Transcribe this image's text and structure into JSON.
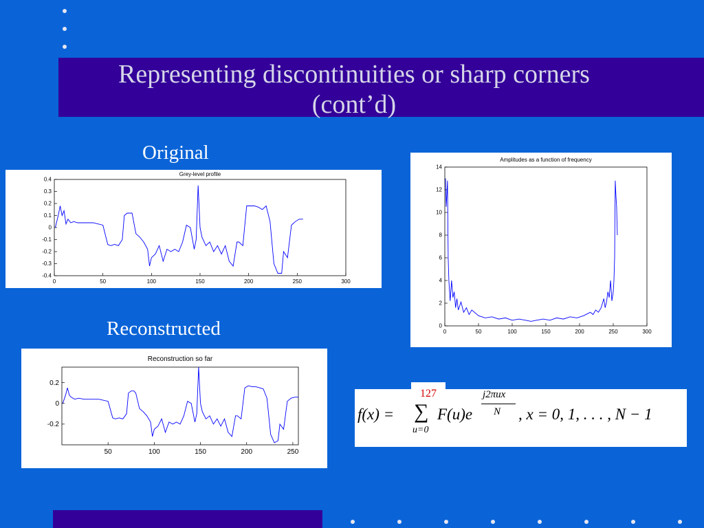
{
  "slide": {
    "title_line1": "Representing discontinuities or sharp corners",
    "title_line2": "(cont’d)",
    "label_original": "Original",
    "label_reconstructed": "Reconstructed",
    "slide_number": "127",
    "colors": {
      "background": "#0a64d8",
      "band": "#330099",
      "title_text": "#d6d6e8",
      "plot_line": "#0000ff",
      "slide_number": "#d40000"
    }
  },
  "equation": {
    "lhs": "f(x) = ",
    "sum_symbol": "∑",
    "sum_lower": "u=0",
    "term": "F(u)e",
    "exp_numerator": "j2πux",
    "exp_denominator": "N",
    "rhs": ", x = 0, 1, . . . , N − 1"
  },
  "chart_data": [
    {
      "type": "line",
      "title": "Grey-level profile",
      "xlim": [
        0,
        300
      ],
      "ylim": [
        -0.4,
        0.4
      ],
      "xticks": [
        "0",
        "50",
        "100",
        "150",
        "200",
        "250",
        "300"
      ],
      "yticks": [
        "0.4",
        "0.3",
        "0.2",
        "0.1",
        "0",
        "-0.1",
        "-0.2",
        "-0.3",
        "-0.4"
      ],
      "series": [
        {
          "x": [
            1,
            4,
            6,
            8,
            10,
            12,
            14,
            17,
            20,
            24,
            30,
            40,
            50,
            55,
            58,
            62,
            66,
            70,
            72,
            75,
            78,
            80,
            84,
            88,
            92,
            96,
            98,
            100,
            104,
            108,
            112,
            116,
            120,
            124,
            128,
            132,
            136,
            140,
            144,
            146,
            148,
            150,
            152,
            156,
            160,
            164,
            168,
            172,
            176,
            180,
            184,
            188,
            190,
            194,
            198,
            202,
            206,
            210,
            214,
            218,
            222,
            226,
            230,
            234,
            236,
            240,
            244,
            248,
            252,
            256
          ],
          "y": [
            0.0,
            0.1,
            0.18,
            0.1,
            0.14,
            0.03,
            0.07,
            0.04,
            0.05,
            0.04,
            0.04,
            0.04,
            0.02,
            -0.14,
            -0.15,
            -0.14,
            -0.15,
            -0.1,
            0.1,
            0.12,
            0.12,
            0.12,
            -0.05,
            -0.08,
            -0.12,
            -0.18,
            -0.32,
            -0.25,
            -0.22,
            -0.15,
            -0.28,
            -0.18,
            -0.2,
            -0.18,
            -0.2,
            -0.12,
            0.02,
            0.0,
            -0.18,
            -0.1,
            0.35,
            0.0,
            -0.08,
            -0.15,
            -0.12,
            -0.2,
            -0.15,
            -0.22,
            -0.15,
            -0.28,
            -0.32,
            -0.12,
            -0.12,
            -0.15,
            0.18,
            0.18,
            0.18,
            0.17,
            0.15,
            0.18,
            0.05,
            -0.3,
            -0.38,
            -0.38,
            -0.2,
            -0.25,
            0.02,
            0.05,
            0.07,
            0.07
          ]
        }
      ]
    },
    {
      "type": "line",
      "title": "Amplitudes as a function of frequency",
      "xlim": [
        0,
        300
      ],
      "ylim": [
        0,
        14
      ],
      "xticks": [
        "0",
        "50",
        "100",
        "150",
        "200",
        "250",
        "300"
      ],
      "yticks": [
        "14",
        "12",
        "10",
        "8",
        "6",
        "4",
        "2",
        "0"
      ],
      "series": [
        {
          "x": [
            1,
            2,
            3,
            4,
            5,
            6,
            7,
            8,
            10,
            12,
            14,
            16,
            18,
            20,
            24,
            28,
            32,
            36,
            40,
            50,
            60,
            70,
            80,
            90,
            100,
            110,
            120,
            128,
            136,
            146,
            156,
            166,
            176,
            186,
            196,
            206,
            216,
            220,
            224,
            228,
            232,
            236,
            238,
            240,
            242,
            244,
            246,
            248,
            250,
            251,
            252,
            253,
            254,
            255,
            256
          ],
          "y": [
            13.0,
            10.5,
            11.5,
            12.8,
            6.0,
            4.0,
            3.0,
            2.2,
            4.0,
            2.5,
            3.0,
            1.6,
            2.4,
            1.4,
            2.1,
            1.2,
            1.6,
            1.0,
            1.4,
            0.9,
            0.7,
            0.8,
            0.6,
            0.7,
            0.5,
            0.6,
            0.5,
            0.4,
            0.5,
            0.6,
            0.5,
            0.7,
            0.6,
            0.8,
            0.7,
            0.9,
            1.2,
            1.0,
            1.4,
            1.2,
            1.6,
            2.4,
            1.6,
            2.1,
            3.0,
            2.5,
            4.0,
            2.2,
            3.0,
            4.0,
            6.0,
            12.8,
            11.5,
            10.5,
            8.0
          ]
        }
      ]
    },
    {
      "type": "line",
      "title": "Reconstruction so far",
      "xlim": [
        0,
        256
      ],
      "ylim": [
        -0.4,
        0.35
      ],
      "xticks": [
        "50",
        "100",
        "150",
        "200",
        "250"
      ],
      "yticks": [
        "0.2",
        "0",
        "-0.2"
      ],
      "series": [
        {
          "x": [
            1,
            4,
            6,
            8,
            10,
            14,
            18,
            24,
            30,
            40,
            50,
            55,
            58,
            62,
            66,
            70,
            72,
            75,
            78,
            80,
            84,
            88,
            92,
            96,
            98,
            100,
            104,
            108,
            112,
            116,
            120,
            124,
            128,
            132,
            136,
            140,
            144,
            146,
            148,
            150,
            152,
            156,
            160,
            164,
            168,
            172,
            176,
            180,
            184,
            188,
            190,
            194,
            198,
            202,
            206,
            210,
            214,
            218,
            222,
            226,
            230,
            234,
            236,
            240,
            244,
            248,
            252,
            256
          ],
          "y": [
            0.0,
            0.08,
            0.15,
            0.08,
            0.06,
            0.04,
            0.05,
            0.04,
            0.04,
            0.04,
            0.02,
            -0.14,
            -0.15,
            -0.14,
            -0.15,
            -0.1,
            0.1,
            0.12,
            0.12,
            0.1,
            -0.05,
            -0.08,
            -0.12,
            -0.18,
            -0.32,
            -0.25,
            -0.22,
            -0.15,
            -0.28,
            -0.18,
            -0.2,
            -0.18,
            -0.2,
            -0.12,
            0.02,
            0.0,
            -0.18,
            -0.1,
            0.35,
            0.0,
            -0.08,
            -0.15,
            -0.12,
            -0.2,
            -0.15,
            -0.22,
            -0.15,
            -0.28,
            -0.32,
            -0.12,
            -0.12,
            -0.15,
            0.15,
            0.17,
            0.16,
            0.16,
            0.15,
            0.14,
            0.05,
            -0.3,
            -0.38,
            -0.36,
            -0.2,
            -0.25,
            0.02,
            0.05,
            0.06,
            0.06
          ]
        }
      ]
    }
  ]
}
